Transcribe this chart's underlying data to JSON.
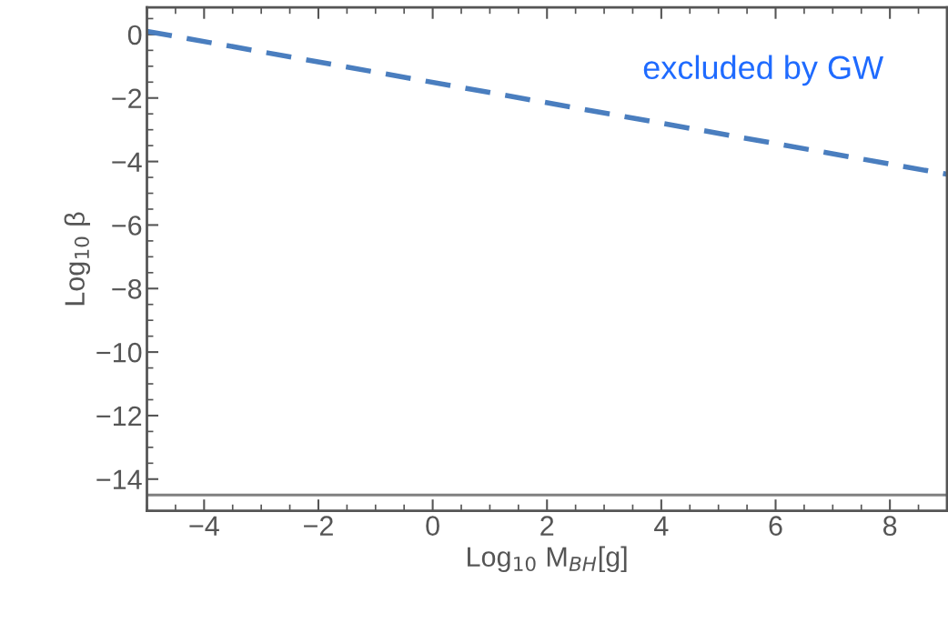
{
  "chart_data": {
    "type": "line",
    "xlabel": "Log$_{10}$ M$_{BH}$[g]",
    "ylabel": "Log$_{10}$ β",
    "x": [
      -5,
      9
    ],
    "series": [
      {
        "color": "#4a7ebf",
        "values": [
          0.1,
          -4.4
        ],
        "line_style": "dashed"
      }
    ],
    "ref_lines": [
      {
        "axis": "y",
        "value": -14.5,
        "color": "#808080",
        "line_style": "solid"
      }
    ],
    "annotations": [
      "excluded by GW"
    ],
    "xlim": [
      -5,
      9
    ],
    "ylim": [
      -15,
      0.85
    ],
    "xticks": [
      -4,
      -2,
      0,
      2,
      4,
      6,
      8
    ],
    "yticks": [
      0,
      -2,
      -4,
      -6,
      -8,
      -10,
      -12,
      -14
    ],
    "grid": false,
    "marker": "none"
  }
}
